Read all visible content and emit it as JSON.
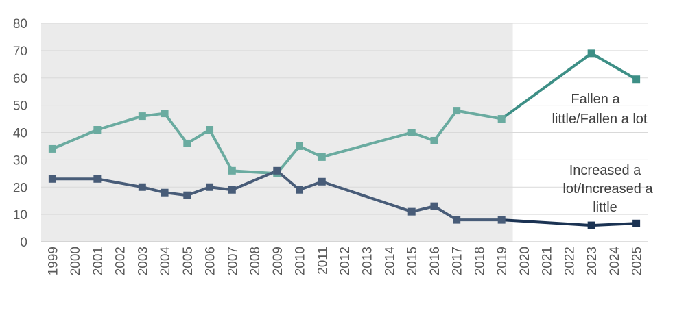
{
  "chart_data": {
    "type": "line",
    "x": [
      "1999",
      "2000",
      "2001",
      "2002",
      "2003",
      "2004",
      "2005",
      "2006",
      "2007",
      "2008",
      "2009",
      "2010",
      "2011",
      "2012",
      "2013",
      "2014",
      "2015",
      "2016",
      "2017",
      "2018",
      "2019",
      "2020",
      "2021",
      "2022",
      "2023",
      "2024",
      "2025"
    ],
    "ylim": [
      0,
      80
    ],
    "yticks": [
      "0",
      "10",
      "20",
      "30",
      "40",
      "50",
      "60",
      "70",
      "80"
    ],
    "grid": true,
    "shaded_period": [
      "1999",
      "2019"
    ],
    "series": [
      {
        "name": "Fallen a little/Fallen a lot",
        "color": "#6aaba0",
        "color_after_shading": "#3d8f86",
        "points": [
          [
            "1999",
            34
          ],
          [
            "2001",
            41
          ],
          [
            "2003",
            46
          ],
          [
            "2004",
            47
          ],
          [
            "2005",
            36
          ],
          [
            "2006",
            41
          ],
          [
            "2007",
            26
          ],
          [
            "2009",
            25
          ],
          [
            "2010",
            35
          ],
          [
            "2011",
            31
          ],
          [
            "2015",
            40
          ],
          [
            "2016",
            37
          ],
          [
            "2017",
            48
          ],
          [
            "2019",
            45
          ],
          [
            "2023",
            69
          ],
          [
            "2025",
            59.5
          ]
        ]
      },
      {
        "name": "Increased a lot/Increased a little",
        "color": "#485c78",
        "color_after_shading": "#1b3353",
        "points": [
          [
            "1999",
            23
          ],
          [
            "2001",
            23
          ],
          [
            "2003",
            20
          ],
          [
            "2004",
            18
          ],
          [
            "2005",
            17
          ],
          [
            "2006",
            20
          ],
          [
            "2007",
            19
          ],
          [
            "2009",
            26
          ],
          [
            "2010",
            19
          ],
          [
            "2011",
            22
          ],
          [
            "2015",
            11
          ],
          [
            "2016",
            13
          ],
          [
            "2017",
            8
          ],
          [
            "2019",
            8
          ],
          [
            "2023",
            6
          ],
          [
            "2025",
            6.7
          ]
        ]
      }
    ],
    "annotations": {
      "fallen": [
        "Fallen a",
        "little/Fallen a lot"
      ],
      "increased": [
        "Increased a",
        "lot/Increased a",
        "little"
      ]
    }
  }
}
